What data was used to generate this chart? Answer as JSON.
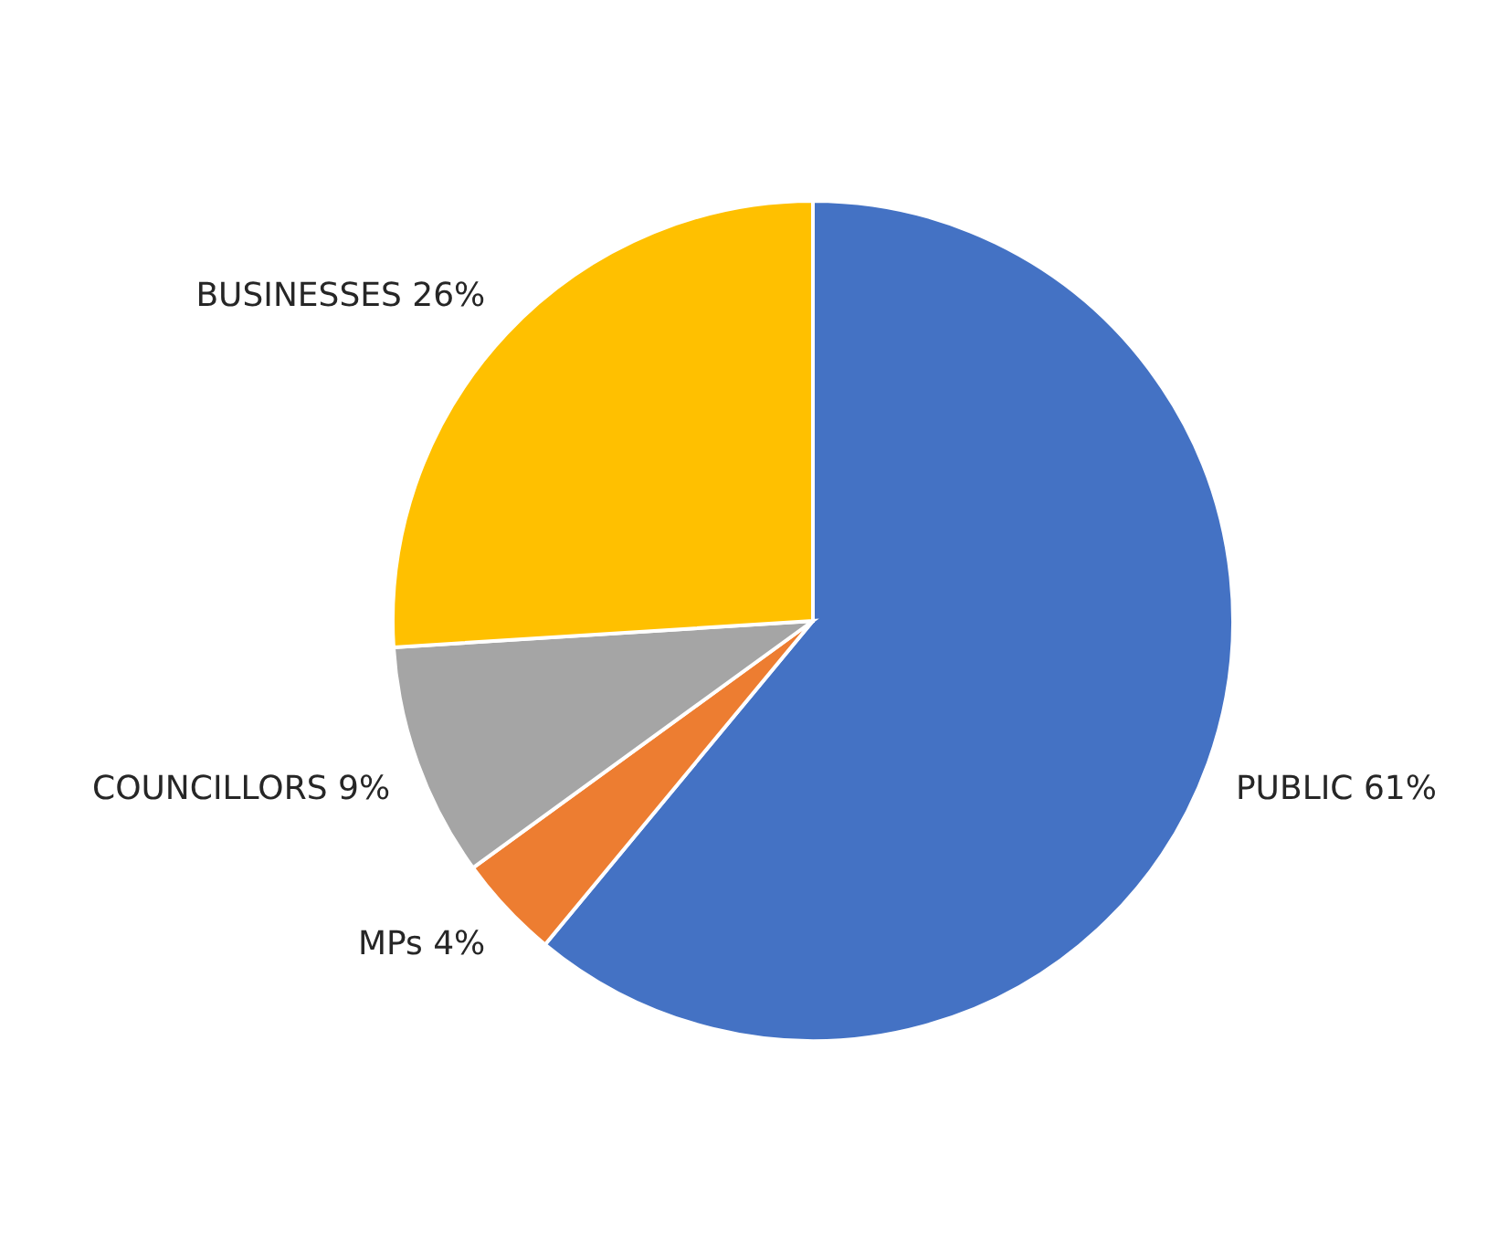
{
  "chart_data": {
    "type": "pie",
    "categories": [
      "PUBLIC",
      "MPs",
      "COUNCILLORS",
      "BUSINESSES"
    ],
    "values": [
      61,
      4,
      9,
      26
    ],
    "value_labels": [
      "61%",
      "4%",
      "9%",
      "26%"
    ],
    "colors": [
      "#4472c4",
      "#ed7d31",
      "#a5a5a5",
      "#ffc000"
    ]
  }
}
